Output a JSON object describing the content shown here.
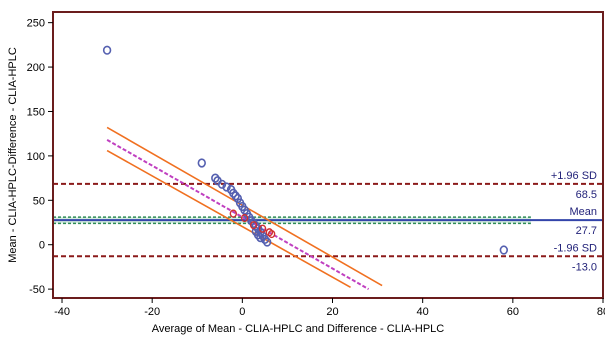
{
  "chart_data": {
    "type": "scatter",
    "xlabel": "Average of Mean - CLIA-HPLC and Difference - CLIA-HPLC",
    "ylabel": "Mean - CLIA-HPLC-Difference - CLIA-HPLC",
    "xlim": [
      -42,
      80
    ],
    "ylim": [
      -60,
      262
    ],
    "x_ticks": [
      "-40",
      "-20",
      "0",
      "20",
      "40",
      "60",
      "80"
    ],
    "y_ticks": [
      "-50",
      "0",
      "50",
      "100",
      "150",
      "200",
      "250"
    ],
    "grid": false,
    "points": [
      {
        "x": -30,
        "y": 219
      },
      {
        "x": -9,
        "y": 92
      },
      {
        "x": -6,
        "y": 75
      },
      {
        "x": -5.5,
        "y": 72
      },
      {
        "x": -4.5,
        "y": 68
      },
      {
        "x": -3.5,
        "y": 65
      },
      {
        "x": -2.5,
        "y": 62
      },
      {
        "x": -2,
        "y": 58
      },
      {
        "x": -1.5,
        "y": 55
      },
      {
        "x": -1,
        "y": 52
      },
      {
        "x": -0.5,
        "y": 47
      },
      {
        "x": 0,
        "y": 43
      },
      {
        "x": 0.5,
        "y": 39
      },
      {
        "x": 1,
        "y": 35
      },
      {
        "x": 1.5,
        "y": 31
      },
      {
        "x": 2,
        "y": 27
      },
      {
        "x": 2.5,
        "y": 24
      },
      {
        "x": 3,
        "y": 21
      },
      {
        "x": 3,
        "y": 15
      },
      {
        "x": 3.5,
        "y": 18
      },
      {
        "x": 3.5,
        "y": 11
      },
      {
        "x": 4,
        "y": 14
      },
      {
        "x": 4,
        "y": 8
      },
      {
        "x": 4.5,
        "y": 10
      },
      {
        "x": 5,
        "y": 6
      },
      {
        "x": 5.5,
        "y": 3
      },
      {
        "x": 58,
        "y": -6
      }
    ],
    "highlight_points": [
      {
        "x": -2,
        "y": 35
      },
      {
        "x": 0.5,
        "y": 30
      },
      {
        "x": 2.5,
        "y": 22
      },
      {
        "x": 4.5,
        "y": 18
      },
      {
        "x": 6,
        "y": 14
      },
      {
        "x": 6.5,
        "y": 12
      }
    ],
    "reference_lines": [
      {
        "label": "+1.96 SD",
        "value_label": "68.5",
        "y": 68.5,
        "style": "dashed",
        "color": "#8b1a1a"
      },
      {
        "label": "Mean",
        "value_label": "27.7",
        "y": 27.7,
        "style": "solid",
        "color": "#3344aa"
      },
      {
        "label": "-1.96 SD",
        "value_label": "-13.0",
        "y": -13.0,
        "style": "dashed",
        "color": "#8b1a1a"
      }
    ],
    "mean_ci_band": {
      "y_low": 24,
      "y_high": 31,
      "x_end": 64,
      "color": "#2e8b57"
    },
    "regression": {
      "fit": {
        "x1": -30,
        "y1": 118,
        "x2": 28,
        "y2": -50,
        "color": "#c040c0"
      },
      "ci_upper": {
        "x1": -30,
        "y1": 132,
        "x2": 31,
        "y2": -46,
        "color": "#f07020"
      },
      "ci_lower": {
        "x1": -30,
        "y1": 106,
        "x2": 24,
        "y2": -48,
        "color": "#f07020"
      }
    },
    "colors": {
      "frame": "#6b1d1d",
      "point": "#5560b0",
      "highlight_point": "#d03030"
    }
  }
}
